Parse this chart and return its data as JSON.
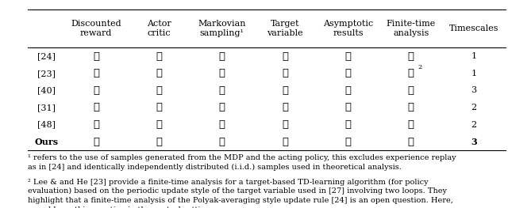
{
  "col_headers": [
    "Discounted\nreward",
    "Actor\ncritic",
    "Markovian\nsampling¹",
    "Target\nvariable",
    "Asymptotic\nresults",
    "Finite-time\nanalysis",
    "Timescales"
  ],
  "row_labels": [
    "[24]",
    "[23]",
    "[40]",
    "[31]",
    "[48]",
    "Ours"
  ],
  "row_bold": [
    false,
    false,
    false,
    false,
    false,
    true
  ],
  "table_data": [
    [
      "✓",
      "✓",
      "✗",
      "✓",
      "✗",
      "✗",
      "1"
    ],
    [
      "✓",
      "✗",
      "✗",
      "✓",
      "✓",
      "✓²",
      "1"
    ],
    [
      "✗",
      "✓",
      "✓",
      "✗",
      "✗",
      "✓",
      "3"
    ],
    [
      "✓",
      "✓",
      "✓",
      "✗",
      "✗",
      "✓",
      "2"
    ],
    [
      "✓",
      "✗",
      "✓",
      "✓",
      "✓",
      "✗",
      "2"
    ],
    [
      "✓",
      "✓",
      "✓",
      "✓",
      "✓",
      "✓",
      "3"
    ]
  ],
  "footnote1": "¹ refers to the use of samples generated from the MDP and the acting policy, this excludes experience replay\nas in [24] and identically independently distributed (i.i.d.) samples used in theoretical analysis.",
  "footnote2": "² Lee & and He [23] provide a finite-time analysis for a target-based TD-learning algorithm (for policy\nevaluation) based on the periodic update style of the target variable used in [27] involving two loops. They\nhighlight that a finite-time analysis of the Polyak-averaging style update rule [24] is an open question. Here,\nwe address this question in the control setting.",
  "check_color": "#000000",
  "cross_color": "#000000",
  "bg_color": "#ffffff",
  "font_size": 8.0,
  "footnote_font_size": 7.0
}
